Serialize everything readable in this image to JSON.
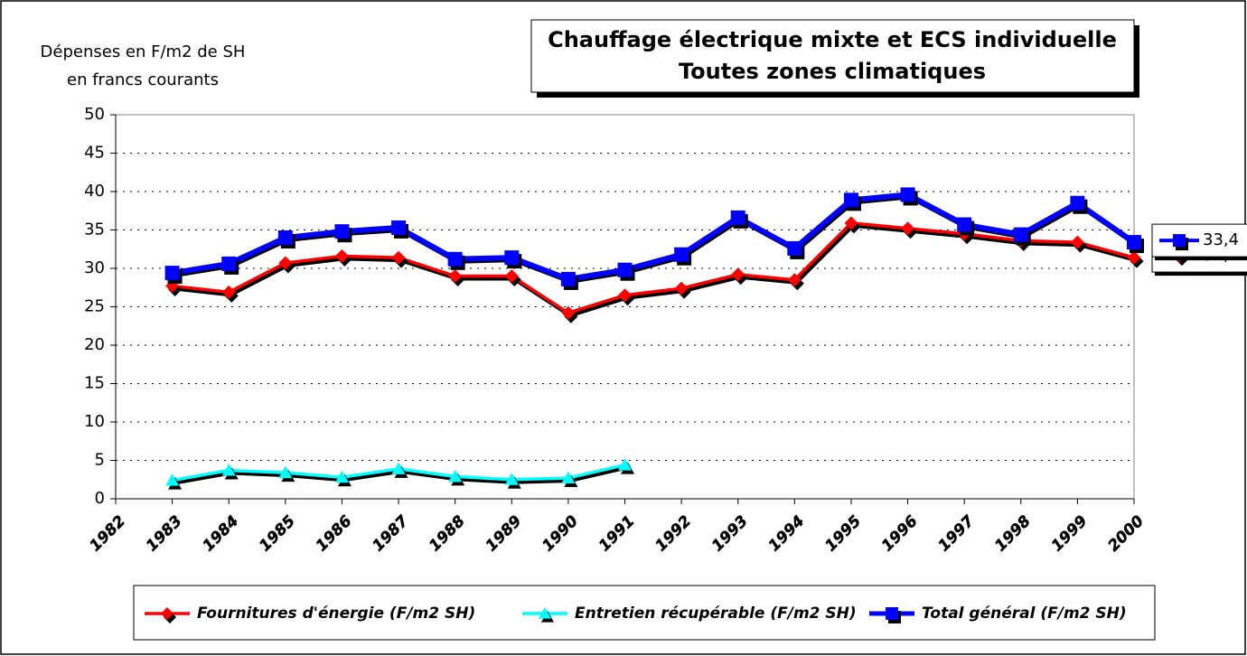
{
  "chart_data": {
    "type": "line",
    "title": [
      "Chauffage électrique mixte et ECS individuelle",
      "Toutes zones climatiques"
    ],
    "y_label": [
      "Dépenses en F/m2 de SH",
      "en francs courants"
    ],
    "x": [
      1983,
      1984,
      1985,
      1986,
      1987,
      1988,
      1989,
      1990,
      1991,
      1992,
      1993,
      1994,
      1995,
      1996,
      1997,
      1998,
      1999,
      2000
    ],
    "xlim": [
      1982,
      2000
    ],
    "xticks": [
      1982,
      1983,
      1984,
      1985,
      1986,
      1987,
      1988,
      1989,
      1990,
      1991,
      1992,
      1993,
      1994,
      1995,
      1996,
      1997,
      1998,
      1999,
      2000
    ],
    "ylim": [
      0,
      50
    ],
    "yticks": [
      0,
      5,
      10,
      15,
      20,
      25,
      30,
      35,
      40,
      45,
      50
    ],
    "grid": true,
    "legend": "bottom",
    "series": [
      {
        "name": "Fournitures d'énergie (F/m2 SH)",
        "color": "#ff0000",
        "marker": "diamond",
        "values": [
          27.7,
          26.9,
          30.7,
          31.6,
          31.4,
          29.0,
          29.0,
          24.2,
          26.5,
          27.4,
          29.2,
          28.5,
          35.9,
          35.2,
          34.5,
          33.6,
          33.4,
          31.4
        ],
        "value_labels": [
          null,
          null,
          null,
          null,
          null,
          null,
          null,
          null,
          null,
          null,
          null,
          null,
          null,
          null,
          null,
          null,
          null,
          "31,4"
        ]
      },
      {
        "name": "Entretien récupérable (F/m2 SH)",
        "color": "#00ffff",
        "marker": "triangle",
        "values": [
          2.4,
          3.7,
          3.4,
          2.8,
          3.9,
          2.9,
          2.5,
          2.7,
          4.4,
          null,
          null,
          null,
          null,
          null,
          null,
          null,
          null,
          null
        ]
      },
      {
        "name": "Total général (F/m2 SH)",
        "color": "#0000ff",
        "marker": "square",
        "values": [
          29.4,
          30.6,
          34.0,
          34.8,
          35.3,
          31.2,
          31.4,
          28.6,
          29.8,
          31.8,
          36.6,
          32.6,
          38.9,
          39.6,
          35.7,
          34.4,
          38.5,
          33.4
        ],
        "value_labels": [
          null,
          null,
          null,
          null,
          null,
          null,
          null,
          null,
          null,
          null,
          null,
          null,
          null,
          null,
          null,
          null,
          null,
          "33,4"
        ]
      }
    ]
  }
}
